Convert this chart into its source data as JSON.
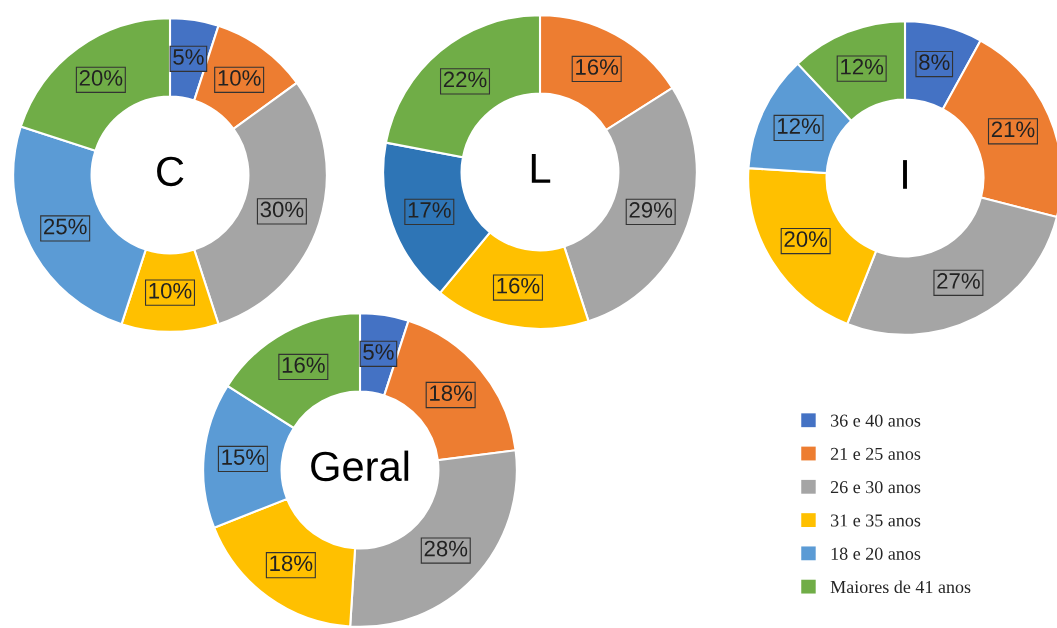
{
  "chart_data": [
    {
      "type": "donut",
      "title": "C",
      "data_labels": true,
      "legend": "bottom right",
      "categories": [
        "36 e 40 anos",
        "21 e 25 anos",
        "26 e 30 anos",
        "31 e 35 anos",
        "18 e 20 anos",
        "Maiores de 41 anos"
      ],
      "values": [
        5,
        10,
        30,
        10,
        25,
        20
      ],
      "value_labels": [
        "5%",
        "10%",
        "30%",
        "10%",
        "25%",
        "20%"
      ],
      "colors": [
        "#4472c4",
        "#ed7d31",
        "#a5a5a5",
        "#ffc000",
        "#5b9bd5",
        "#70ad47"
      ]
    },
    {
      "type": "donut",
      "title": "L",
      "data_labels": true,
      "categories": [
        null,
        null,
        null,
        null,
        null
      ],
      "values": [
        16,
        29,
        16,
        17,
        22
      ],
      "value_labels": [
        "16%",
        "29%",
        "16%",
        "17%",
        "22%"
      ],
      "colors": [
        "#ed7d31",
        "#a5a5a5",
        "#ffc000",
        "#2e75b6",
        "#70ad47"
      ]
    },
    {
      "type": "donut",
      "title": "I",
      "data_labels": true,
      "categories": [
        null,
        null,
        null,
        null,
        null,
        null
      ],
      "values": [
        8,
        21,
        27,
        20,
        12,
        12
      ],
      "value_labels": [
        "8%",
        "21%",
        "27%",
        "20%",
        "12%",
        "12%"
      ],
      "colors": [
        "#4472c4",
        "#ed7d31",
        "#a5a5a5",
        "#ffc000",
        "#5b9bd5",
        "#70ad47"
      ]
    },
    {
      "type": "donut",
      "title": "Geral",
      "data_labels": true,
      "categories": [
        null,
        null,
        null,
        null,
        null,
        null
      ],
      "values": [
        5,
        18,
        28,
        18,
        15,
        16
      ],
      "value_labels": [
        "5%",
        "18%",
        "28%",
        "18%",
        "15%",
        "16%"
      ],
      "colors": [
        "#4472c4",
        "#ed7d31",
        "#a5a5a5",
        "#ffc000",
        "#5b9bd5",
        "#70ad47"
      ]
    }
  ]
}
